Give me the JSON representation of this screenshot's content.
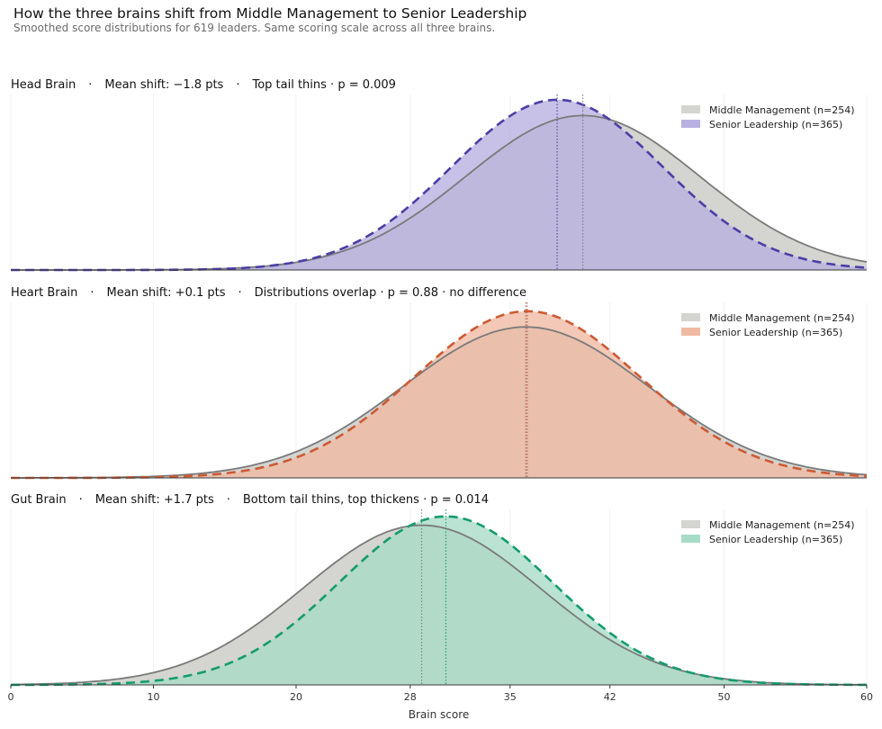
{
  "title": "How the three brains shift from Middle Management to Senior Leadership",
  "subtitle": "Smoothed score distributions for 619 leaders. Same scoring scale across all three brains.",
  "chart_data": {
    "type": "area",
    "xlabel": "Brain score",
    "xlim": [
      0,
      60
    ],
    "x_ticks": [
      0,
      10,
      20,
      28,
      35,
      42,
      50,
      60
    ],
    "grid": "vertical",
    "legend_position": "top-right",
    "series_names": [
      "Middle Management (n=254)",
      "Senior Leadership (n=365)"
    ],
    "panels": [
      {
        "name": "Head Brain",
        "header": [
          "Head Brain",
          "Mean shift: −1.8 pts",
          "Top tail thins · p = 0.009"
        ],
        "middle": {
          "mean": 40.1,
          "sd": 8.2,
          "peak": 0.88,
          "color": "#7a7a7a",
          "fill": "#d4d4d1"
        },
        "senior": {
          "mean": 38.3,
          "sd": 7.4,
          "peak": 0.97,
          "color": "#4a3fa6",
          "fill": "#b7b0e0"
        }
      },
      {
        "name": "Heart Brain",
        "header": [
          "Heart Brain",
          "Mean shift: +0.1 pts",
          "Distributions overlap · p = 0.88 · no difference"
        ],
        "middle": {
          "mean": 36.1,
          "sd": 8.6,
          "peak": 0.86,
          "color": "#7a7a7a",
          "fill": "#d4d4d1"
        },
        "senior": {
          "mean": 36.2,
          "sd": 7.9,
          "peak": 0.95,
          "color": "#cc5a33",
          "fill": "#efb9a2"
        }
      },
      {
        "name": "Gut Brain",
        "header": [
          "Gut Brain",
          "Mean shift: +1.7 pts",
          "Bottom tail thins, top thickens · p = 0.014"
        ],
        "middle": {
          "mean": 28.8,
          "sd": 8.3,
          "peak": 0.91,
          "color": "#7a7a7a",
          "fill": "#d4d4d1"
        },
        "senior": {
          "mean": 30.5,
          "sd": 7.5,
          "peak": 0.96,
          "color": "#149c6e",
          "fill": "#a6dbc6"
        }
      }
    ]
  }
}
